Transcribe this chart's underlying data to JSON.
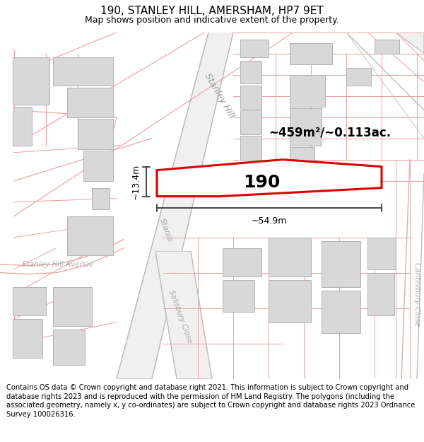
{
  "title": "190, STANLEY HILL, AMERSHAM, HP7 9ET",
  "subtitle": "Map shows position and indicative extent of the property.",
  "footer": "Contains OS data © Crown copyright and database right 2021. This information is subject to Crown copyright and database rights 2023 and is reproduced with the permission of HM Land Registry. The polygons (including the associated geometry, namely x, y co-ordinates) are subject to Crown copyright and database rights 2023 Ordnance Survey 100026316.",
  "area_text": "~459m²/~0.113ac.",
  "width_label": "~54.9m",
  "height_label": "~13.4m",
  "property_number": "190",
  "road_label_1": "Stanley Hill",
  "road_label_2": "Stanley Hill Avenue",
  "road_label_3": "Salisbury Close",
  "road_label_4": "Canterbury Close",
  "bg_color": "#ffffff",
  "map_bg": "#ffffff",
  "plot_outline_color": "#dd0000",
  "building_fill": "#d8d8d8",
  "building_edge": "#aaaaaa",
  "road_line_color": "#e8a0a0",
  "road_fill_color": "#f5f5f5",
  "dim_line_color": "#444444",
  "title_fontsize": 11,
  "subtitle_fontsize": 9,
  "footer_fontsize": 7.2
}
